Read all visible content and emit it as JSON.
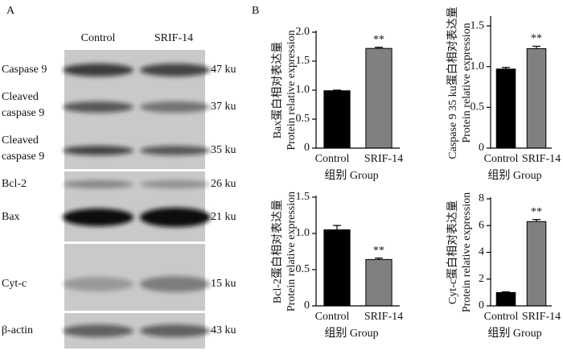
{
  "panel_a": {
    "label": "A",
    "lanes": [
      "Control",
      "SRIF-14"
    ],
    "rows": [
      {
        "name": [
          "Caspase 9"
        ],
        "size": "47 ku"
      },
      {
        "name": [
          "Cleaved",
          "caspase 9"
        ],
        "size": "37 ku"
      },
      {
        "name": [
          "Cleaved",
          "caspase 9"
        ],
        "size": "35 ku"
      },
      {
        "name": [
          "Bcl-2"
        ],
        "size": "26 ku"
      },
      {
        "name": [
          "Bax"
        ],
        "size": "21 ku"
      },
      {
        "name": [
          "Cyt-c"
        ],
        "size": "15 ku"
      },
      {
        "name": [
          "β-actin"
        ],
        "size": "43 ku"
      }
    ]
  },
  "panel_b_label": "B",
  "chart_data": [
    {
      "type": "bar",
      "y_label": [
        "Bax蛋白相对表达量",
        "Protein relative expression"
      ],
      "x_label": "组别 Group",
      "categories": [
        "Control",
        "SRIF-14"
      ],
      "values": [
        0.99,
        1.72
      ],
      "errors": [
        0.01,
        0.02
      ],
      "colors": [
        "#000000",
        "#808080"
      ],
      "value_annotations": [
        null,
        "**"
      ],
      "ylim": [
        0,
        2
      ],
      "yticks": [
        0,
        0.5,
        {
          "value": 1,
          "label": "1.0"
        },
        1.5,
        {
          "value": 2,
          "label": "2.0"
        }
      ]
    },
    {
      "type": "bar",
      "y_label": [
        "Caspase 9 35 ku蛋白相对表达量",
        "Protein relative expression"
      ],
      "x_label": "组别 Group",
      "categories": [
        "Control",
        "SRIF-14"
      ],
      "values": [
        0.97,
        1.22
      ],
      "errors": [
        0.02,
        0.03
      ],
      "colors": [
        "#000000",
        "#808080"
      ],
      "value_annotations": [
        null,
        "**"
      ],
      "ylim": [
        0,
        1.6
      ],
      "yticks": [
        0,
        0.5,
        {
          "value": 1,
          "label": "1.0"
        },
        1.5
      ]
    },
    {
      "type": "bar",
      "y_label": [
        "Bcl-2蛋白相对表达量",
        "Protein relative expression"
      ],
      "x_label": "组别 Group",
      "categories": [
        "Control",
        "SRIF-14"
      ],
      "values": [
        1.05,
        0.64
      ],
      "errors": [
        0.06,
        0.02
      ],
      "colors": [
        "#000000",
        "#808080"
      ],
      "value_annotations": [
        null,
        "**"
      ],
      "ylim": [
        0,
        1.5
      ],
      "yticks": [
        0,
        0.5,
        {
          "value": 1,
          "label": "1.0"
        },
        1.5
      ]
    },
    {
      "type": "bar",
      "y_label": [
        "Cyt-c蛋白相对表达量",
        "Protein relative expression"
      ],
      "x_label": "组别 Group",
      "categories": [
        "Control",
        "SRIF-14"
      ],
      "values": [
        1.0,
        6.3
      ],
      "errors": [
        0.05,
        0.15
      ],
      "colors": [
        "#000000",
        "#808080"
      ],
      "value_annotations": [
        null,
        "**"
      ],
      "ylim": [
        0,
        8
      ],
      "yticks": [
        0,
        2,
        4,
        6,
        8
      ]
    }
  ]
}
